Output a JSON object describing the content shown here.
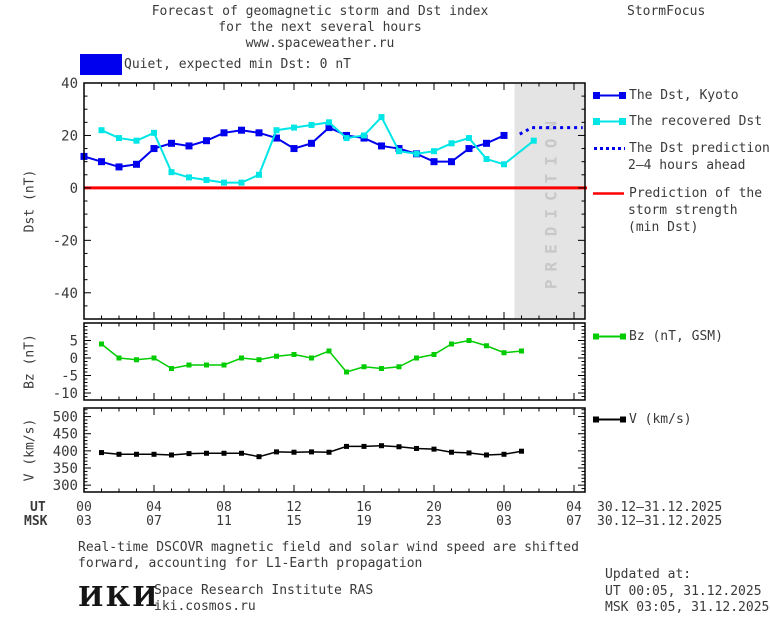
{
  "header": {
    "title_line1": "Forecast of geomagnetic storm and Dst index",
    "title_line2": "for the next several hours",
    "title_line3": "www.spaceweather.ru",
    "brand": "StormFocus"
  },
  "status": {
    "label": "Quiet, expected min Dst: 0 nT",
    "swatch_color": "#0000ee"
  },
  "colors": {
    "dst_blue": "#0000ee",
    "recovered_cyan": "#00e6e6",
    "prediction_blue": "#0000ee",
    "storm_red": "#ff0000",
    "bz_green": "#00cc00",
    "v_black": "#000000",
    "band_gray": "#e4e4e4",
    "band_text": "#c8c8c8"
  },
  "prediction_band_label": "PREDICTION",
  "legend": {
    "dst_kyoto": "The Dst, Kyoto",
    "recovered": "The recovered Dst",
    "prediction_l1": "The Dst prediction",
    "prediction_l2": "2–4 hours ahead",
    "storm_l1": "Prediction of the",
    "storm_l2": "storm strength",
    "storm_l3": "(min Dst)",
    "bz": "Bz (nT, GSM)",
    "v": "V (km/s)"
  },
  "xaxis": {
    "ut_row_label": "UT",
    "msk_row_label": "MSK",
    "tick_hours": [
      0,
      4,
      8,
      12,
      16,
      20,
      24,
      28
    ],
    "ut_ticks": [
      "00",
      "04",
      "08",
      "12",
      "16",
      "20",
      "00",
      "04"
    ],
    "msk_ticks": [
      "03",
      "07",
      "11",
      "15",
      "19",
      "23",
      "03",
      "07"
    ],
    "ut_date": "30.12–31.12.2025",
    "msk_date": "30.12–31.12.2025"
  },
  "footer": {
    "note_line1": "Real-time DSCOVR magnetic field and solar wind speed are shifted",
    "note_line2": "forward, accounting for L1-Earth propagation",
    "updated_label": "Updated at:",
    "updated_ut": "UT  00:05, 31.12.2025",
    "updated_msk": "MSK 03:05, 31.12.2025",
    "logo_text": "ИКИ",
    "institute_line1": "Space Research Institute RAS",
    "institute_line2": "iki.cosmos.ru"
  },
  "chart_data": [
    {
      "type": "line",
      "name": "dst",
      "ylabel": "Dst (nT)",
      "ylim": [
        -50,
        40
      ],
      "yticks": [
        40,
        20,
        0,
        -20,
        -40
      ],
      "y_minor_step": 5,
      "xlim_hours": [
        0,
        28.6
      ],
      "zero_line_value": 0,
      "zero_line_color": "#ff0000",
      "prediction_band": {
        "start_hour": 24.6,
        "end_hour": 28.6
      },
      "series": [
        {
          "name": "The Dst, Kyoto",
          "color": "#0000ee",
          "style": "solid",
          "marker": true,
          "marker_size": 7,
          "line_width": 2,
          "x": [
            0,
            1,
            2,
            3,
            4,
            5,
            6,
            7,
            8,
            9,
            10,
            11,
            12,
            13,
            14,
            15,
            16,
            17,
            18,
            19,
            20,
            21,
            22,
            23,
            24
          ],
          "y": [
            12,
            10,
            8,
            9,
            15,
            17,
            16,
            18,
            21,
            22,
            21,
            19,
            15,
            17,
            23,
            20,
            19,
            16,
            15,
            13,
            10,
            10,
            15,
            17,
            20
          ]
        },
        {
          "name": "The recovered Dst",
          "color": "#00e6e6",
          "style": "solid",
          "marker": true,
          "marker_size": 6,
          "line_width": 2,
          "x": [
            1,
            2,
            3,
            4,
            5,
            6,
            7,
            8,
            9,
            10,
            11,
            12,
            13,
            14,
            15,
            16,
            17,
            18,
            19,
            20,
            21,
            22,
            23,
            24,
            25.7
          ],
          "y": [
            22,
            19,
            18,
            21,
            6,
            4,
            3,
            2,
            2,
            5,
            22,
            23,
            24,
            25,
            19,
            20,
            27,
            14,
            13,
            14,
            17,
            19,
            11,
            9,
            18
          ]
        },
        {
          "name": "The Dst prediction 2–4 hours ahead",
          "color": "#0000ee",
          "style": "dotted",
          "marker": false,
          "line_width": 3,
          "x": [
            24.9,
            25.6,
            28.5
          ],
          "y": [
            20.5,
            23,
            23
          ]
        }
      ]
    },
    {
      "type": "line",
      "name": "bz",
      "ylabel": "Bz (nT)",
      "ylim": [
        -12,
        10
      ],
      "yticks": [
        5,
        0,
        -5,
        -10
      ],
      "y_minor_step": 1,
      "xlim_hours": [
        0,
        28.6
      ],
      "series": [
        {
          "name": "Bz (nT, GSM)",
          "color": "#00cc00",
          "style": "solid",
          "marker": true,
          "marker_size": 5,
          "line_width": 1.5,
          "x": [
            1,
            2,
            3,
            4,
            5,
            6,
            7,
            8,
            9,
            10,
            11,
            12,
            13,
            14,
            15,
            16,
            17,
            18,
            19,
            20,
            21,
            22,
            23,
            24,
            25
          ],
          "y": [
            4,
            0,
            -0.5,
            0,
            -3,
            -2,
            -2,
            -2,
            0,
            -0.5,
            0.5,
            1,
            0,
            2,
            -4,
            -2.5,
            -3,
            -2.5,
            0,
            1,
            4,
            5,
            3.5,
            1.5,
            2
          ]
        }
      ]
    },
    {
      "type": "line",
      "name": "v",
      "ylabel": "V (km/s)",
      "ylim": [
        280,
        525
      ],
      "yticks": [
        500,
        450,
        400,
        350,
        300
      ],
      "y_minor_step": 10,
      "xlim_hours": [
        0,
        28.6
      ],
      "series": [
        {
          "name": "V (km/s)",
          "color": "#000000",
          "style": "solid",
          "marker": true,
          "marker_size": 5,
          "line_width": 1.5,
          "x": [
            1,
            2,
            3,
            4,
            5,
            6,
            7,
            8,
            9,
            10,
            11,
            12,
            13,
            14,
            15,
            16,
            17,
            18,
            19,
            20,
            21,
            22,
            23,
            24,
            25
          ],
          "y": [
            395,
            390,
            390,
            390,
            388,
            392,
            393,
            393,
            393,
            383,
            397,
            396,
            397,
            396,
            413,
            413,
            415,
            412,
            407,
            405,
            396,
            394,
            388,
            390,
            399
          ]
        }
      ]
    }
  ]
}
